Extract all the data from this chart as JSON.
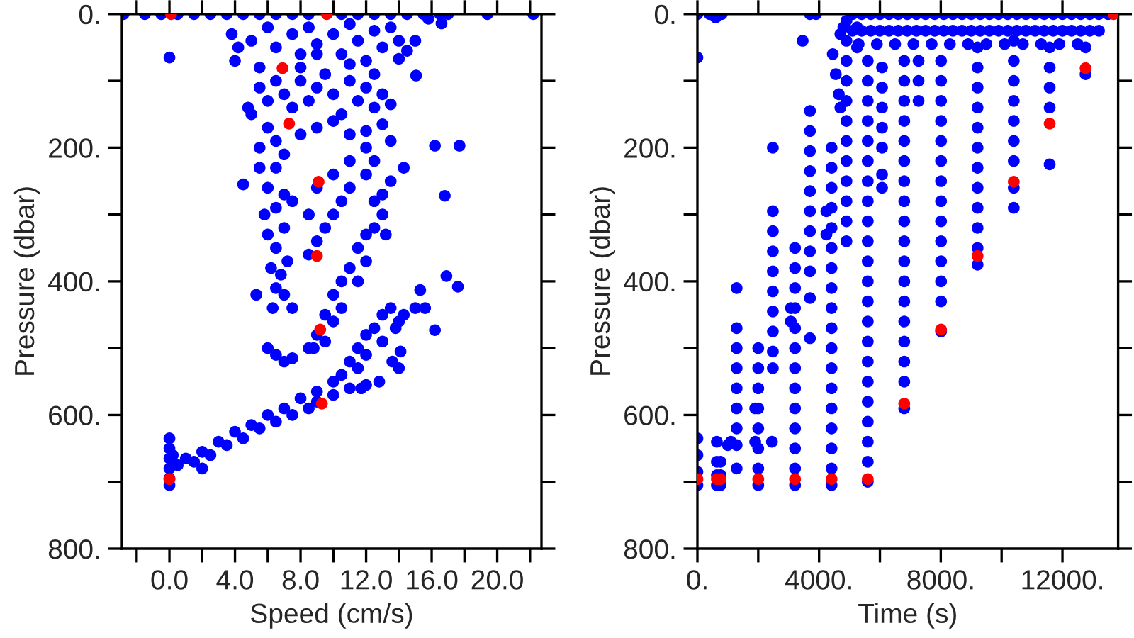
{
  "chart_data": [
    {
      "type": "scatter",
      "xlabel": "Speed (cm/s)",
      "ylabel": "Pressure (dbar)",
      "marker": "circle",
      "xlim": [
        -2.9,
        22.7
      ],
      "ylim": [
        800,
        0
      ],
      "xticks": [
        {
          "value": -2,
          "label": null
        },
        {
          "value": 0,
          "label": "0.0"
        },
        {
          "value": 2,
          "label": null
        },
        {
          "value": 4,
          "label": "4.0"
        },
        {
          "value": 6,
          "label": null
        },
        {
          "value": 8,
          "label": "8.0"
        },
        {
          "value": 10,
          "label": null
        },
        {
          "value": 12,
          "label": "12.0"
        },
        {
          "value": 14,
          "label": null
        },
        {
          "value": 16,
          "label": "16.0"
        },
        {
          "value": 18,
          "label": null
        },
        {
          "value": 20,
          "label": "20.0"
        },
        {
          "value": 22,
          "label": null
        }
      ],
      "yticks": [
        {
          "value": 0,
          "label": "0."
        },
        {
          "value": 100,
          "label": null
        },
        {
          "value": 200,
          "label": "200."
        },
        {
          "value": 300,
          "label": null
        },
        {
          "value": 400,
          "label": "400."
        },
        {
          "value": 500,
          "label": null
        },
        {
          "value": 600,
          "label": "600."
        },
        {
          "value": 700,
          "label": null
        },
        {
          "value": 800,
          "label": "800."
        }
      ],
      "series": [
        {
          "color": "#0000ff",
          "x": [
            -2.8,
            -1.5,
            -0.5,
            0.5,
            1.5,
            2.5,
            3.5,
            4.5,
            5.5,
            6.5,
            7.5,
            8.5,
            10.5,
            11.5,
            12.5,
            13.5,
            14.5,
            15.5,
            16.5,
            17.0,
            19.4,
            22.2,
            3.8,
            4.2,
            4.0,
            5,
            5.5,
            6,
            6.5,
            7.5,
            8,
            8.5,
            9,
            10,
            10.5,
            11,
            11.5,
            12,
            12.5,
            13,
            13.5,
            14,
            14.5,
            15,
            15.8,
            16.6,
            14.0,
            15.05,
            5.5,
            6,
            6.5,
            7,
            7.5,
            8,
            8.5,
            9,
            9.5,
            10,
            10.5,
            11,
            11.5,
            12,
            12.5,
            13,
            13.5,
            4.8,
            5,
            6,
            6.5,
            8,
            9,
            10,
            11,
            12,
            13,
            13.5,
            5.5,
            8,
            9,
            11,
            12.5,
            16.2,
            17.7,
            14.3,
            16.8,
            16.9,
            17.6,
            15.3,
            15.0,
            15.6,
            16.2,
            13.6,
            14.0,
            14.1,
            12.0,
            11.7,
            12.8,
            4.5,
            5.3,
            5.5,
            6,
            6.5,
            7,
            5.8,
            6.5,
            7,
            7.5,
            6,
            6.5,
            7,
            6.2,
            6.8,
            7.2,
            6.5,
            7,
            6.3,
            7.5,
            6,
            6.5,
            7,
            7.5,
            8.5,
            13.5,
            13,
            12.5,
            13,
            12.5,
            13.2,
            12,
            11.5,
            12,
            11,
            11.5,
            10.5,
            10,
            10.5,
            9.5,
            10,
            9,
            8.8,
            9.5,
            12.5,
            12,
            11,
            10.5,
            10,
            9.5,
            9,
            8.5,
            8.5,
            9,
            10,
            11,
            12,
            13.5,
            13,
            14,
            12.5,
            13,
            12,
            11.5,
            12,
            11,
            11.5,
            10.5,
            10,
            13.8,
            14.3,
            9,
            8,
            7,
            6,
            5,
            4,
            3,
            2,
            1,
            0.5,
            8.5,
            7.5,
            6.5,
            5.5,
            4.5,
            3.5,
            2.5,
            1.5,
            10,
            11,
            9,
            2,
            0.2,
            0,
            0,
            0,
            0,
            0,
            0,
            0
          ],
          "values": [
            0,
            0,
            0,
            0,
            0,
            0,
            0,
            0,
            0,
            0,
            0,
            0,
            0,
            0,
            0,
            0,
            0,
            0,
            0,
            0,
            0,
            0,
            30,
            50,
            70,
            40,
            80,
            20,
            50,
            30,
            60,
            20,
            45,
            30,
            60,
            15,
            40,
            70,
            25,
            50,
            20,
            40,
            55,
            40,
            7,
            14,
            67,
            92,
            110,
            130,
            100,
            120,
            140,
            100,
            130,
            110,
            90,
            120,
            150,
            100,
            130,
            110,
            140,
            120,
            135,
            140,
            150,
            170,
            190,
            180,
            170,
            160,
            180,
            175,
            165,
            190,
            200,
            80,
            60,
            75,
            90,
            197,
            197,
            230,
            272,
            392,
            408,
            413,
            440,
            440,
            473,
            520,
            530,
            505,
            555,
            560,
            550,
            255,
            420,
            230,
            260,
            230,
            210,
            300,
            290,
            270,
            280,
            330,
            350,
            320,
            380,
            390,
            370,
            410,
            420,
            440,
            440,
            500,
            510,
            520,
            515,
            500,
            250,
            270,
            280,
            300,
            320,
            330,
            330,
            350,
            370,
            380,
            400,
            400,
            420,
            440,
            450,
            460,
            480,
            500,
            490,
            220,
            240,
            260,
            280,
            300,
            320,
            340,
            360,
            300,
            260,
            240,
            220,
            200,
            440,
            450,
            460,
            470,
            490,
            480,
            500,
            510,
            520,
            530,
            540,
            550,
            470,
            450,
            565,
            575,
            590,
            600,
            615,
            625,
            640,
            655,
            665,
            675,
            590,
            600,
            610,
            620,
            635,
            645,
            660,
            670,
            570,
            560,
            580,
            680,
            660,
            635,
            650,
            665,
            680,
            695,
            705,
            65
          ]
        },
        {
          "color": "#ff0000",
          "x": [
            0.1,
            9.6,
            6.9,
            7.3,
            9.1,
            9.0,
            9.2,
            9.3,
            0.0
          ],
          "values": [
            0,
            0,
            81,
            164,
            251,
            362,
            472,
            583,
            696
          ]
        }
      ]
    },
    {
      "type": "scatter",
      "xlabel": "Time (s)",
      "ylabel": "Pressure (dbar)",
      "marker": "circle",
      "xlim": [
        0,
        13830
      ],
      "ylim": [
        800,
        0
      ],
      "xticks": [
        {
          "value": 0,
          "label": "0."
        },
        {
          "value": 2000,
          "label": null
        },
        {
          "value": 4000,
          "label": "4000."
        },
        {
          "value": 6000,
          "label": null
        },
        {
          "value": 8000,
          "label": "8000."
        },
        {
          "value": 10000,
          "label": null
        },
        {
          "value": 12000,
          "label": "12000."
        }
      ],
      "yticks": [
        {
          "value": 0,
          "label": "0."
        },
        {
          "value": 100,
          "label": null
        },
        {
          "value": 200,
          "label": "200."
        },
        {
          "value": 300,
          "label": null
        },
        {
          "value": 400,
          "label": "400."
        },
        {
          "value": 500,
          "label": null
        },
        {
          "value": 600,
          "label": "600."
        },
        {
          "value": 700,
          "label": null
        },
        {
          "value": 800,
          "label": "800."
        }
      ],
      "series": [
        {
          "color": "#0000ff",
          "x": [
            0,
            0,
            0,
            0,
            0,
            0,
            640,
            640,
            640,
            640,
            760,
            760,
            760,
            400,
            600,
            800,
            1290,
            1290,
            1290,
            1290,
            1290,
            1290,
            1290,
            1290,
            1290,
            1000,
            1100,
            1900,
            1900,
            2000,
            2000,
            2000,
            2000,
            2000,
            2000,
            2000,
            2000,
            2480,
            2480,
            2480,
            2480,
            2480,
            2480,
            2480,
            2480,
            2480,
            2480,
            2450,
            3070,
            3070,
            3210,
            3210,
            3210,
            3210,
            3210,
            3210,
            3210,
            3210,
            3210,
            3210,
            3210,
            3210,
            3210,
            3460,
            3700,
            3700,
            3700,
            3700,
            3700,
            3700,
            3700,
            3700,
            3700,
            3700,
            3700,
            3700,
            3900,
            4240,
            4240,
            4410,
            4410,
            4410,
            4410,
            4410,
            4410,
            4410,
            4410,
            4410,
            4410,
            4410,
            4410,
            4410,
            4410,
            4410,
            4410,
            4410,
            4410,
            4450,
            4550,
            4650,
            4700,
            4700,
            4800,
            4900,
            4900,
            4900,
            4900,
            4900,
            4900,
            4900,
            4900,
            4900,
            4900,
            4900,
            4900,
            5250,
            5250,
            5600,
            5600,
            5600,
            5600,
            5600,
            5600,
            5600,
            5600,
            5600,
            5600,
            5600,
            5600,
            5600,
            5600,
            5600,
            5600,
            5600,
            5600,
            5600,
            5600,
            5600,
            5600,
            6070,
            6070,
            6070,
            6070,
            6070,
            6070,
            6070,
            6800,
            6800,
            6800,
            6800,
            6800,
            6800,
            6800,
            6800,
            6800,
            6800,
            6800,
            6800,
            6800,
            6800,
            6800,
            6800,
            6800,
            6800,
            7270,
            7270,
            7270,
            8010,
            8010,
            8010,
            8010,
            8010,
            8010,
            8010,
            8010,
            8010,
            8010,
            8010,
            8010,
            8010,
            8010,
            9210,
            9210,
            9210,
            9210,
            9210,
            9210,
            9210,
            9210,
            9210,
            9210,
            9210,
            9210,
            10400,
            10400,
            10400,
            10400,
            10400,
            10400,
            10400,
            10400,
            10400,
            11580,
            11580,
            11580,
            11580,
            11580,
            12760,
            12760,
            5100,
            5400,
            5700,
            6000,
            6300,
            6600,
            6900,
            7200,
            7500,
            7800,
            8100,
            8400,
            8700,
            9000,
            9300,
            9600,
            9900,
            10200,
            10500,
            10800,
            11100,
            11400,
            11700,
            12000,
            12300,
            12600,
            12900,
            13200,
            13500,
            5100,
            5400,
            5700,
            6000,
            6300,
            6600,
            6900,
            7200,
            7500,
            7800,
            8100,
            8400,
            8700,
            9000,
            9300,
            9600,
            9900,
            10200,
            10500,
            10800,
            11100,
            11400,
            11700,
            12000,
            12300,
            12600,
            12900,
            13200,
            5300,
            5900,
            6500,
            7100,
            7700,
            8300,
            8900,
            9500,
            10100,
            10700,
            11300,
            11900,
            12500
          ],
          "values": [
            0,
            65,
            635,
            660,
            685,
            705,
            640,
            670,
            690,
            705,
            670,
            690,
            705,
            0,
            5,
            0,
            410,
            470,
            500,
            530,
            560,
            590,
            620,
            645,
            680,
            645,
            640,
            640,
            590,
            500,
            530,
            560,
            590,
            620,
            650,
            680,
            705,
            200,
            295,
            325,
            355,
            385,
            415,
            445,
            475,
            505,
            530,
            640,
            440,
            460,
            350,
            380,
            410,
            440,
            470,
            500,
            530,
            560,
            590,
            620,
            650,
            680,
            705,
            40,
            0,
            145,
            175,
            205,
            235,
            265,
            295,
            325,
            355,
            385,
            425,
            485,
            0,
            295,
            330,
            200,
            230,
            260,
            290,
            320,
            350,
            380,
            410,
            440,
            470,
            500,
            530,
            560,
            590,
            620,
            650,
            680,
            705,
            60,
            90,
            120,
            140,
            30,
            20,
            10,
            40,
            70,
            100,
            130,
            160,
            190,
            220,
            250,
            280,
            310,
            340,
            20,
            50,
            70,
            100,
            130,
            160,
            190,
            220,
            250,
            280,
            310,
            340,
            370,
            400,
            430,
            460,
            490,
            520,
            550,
            580,
            610,
            640,
            670,
            700,
            80,
            110,
            140,
            170,
            200,
            240,
            260,
            70,
            100,
            130,
            160,
            190,
            220,
            250,
            280,
            310,
            340,
            370,
            400,
            430,
            460,
            490,
            520,
            550,
            590,
            70,
            100,
            130,
            70,
            100,
            130,
            160,
            190,
            220,
            250,
            280,
            310,
            340,
            370,
            400,
            430,
            475,
            50,
            80,
            110,
            140,
            170,
            200,
            230,
            260,
            290,
            320,
            350,
            375,
            40,
            70,
            100,
            130,
            160,
            190,
            220,
            260,
            290,
            50,
            80,
            110,
            140,
            225,
            50,
            90,
            0,
            0,
            0,
            0,
            0,
            0,
            0,
            0,
            0,
            0,
            0,
            0,
            0,
            0,
            0,
            0,
            0,
            0,
            0,
            0,
            0,
            0,
            0,
            0,
            0,
            0,
            0,
            0,
            0,
            25,
            25,
            25,
            25,
            25,
            25,
            25,
            25,
            25,
            25,
            25,
            25,
            25,
            25,
            25,
            25,
            25,
            25,
            25,
            25,
            25,
            25,
            25,
            25,
            25,
            25,
            25,
            25,
            45,
            45,
            45,
            45,
            45,
            45,
            45,
            45,
            45,
            45,
            45,
            45,
            45
          ]
        },
        {
          "color": "#ff0000",
          "x": [
            0,
            640,
            760,
            2000,
            3210,
            4410,
            5600,
            6800,
            8010,
            9210,
            10400,
            11580,
            12760,
            13680
          ],
          "values": [
            696,
            696,
            696,
            696,
            696,
            696,
            696,
            583,
            472,
            362,
            251,
            164,
            81,
            0
          ]
        }
      ]
    }
  ]
}
